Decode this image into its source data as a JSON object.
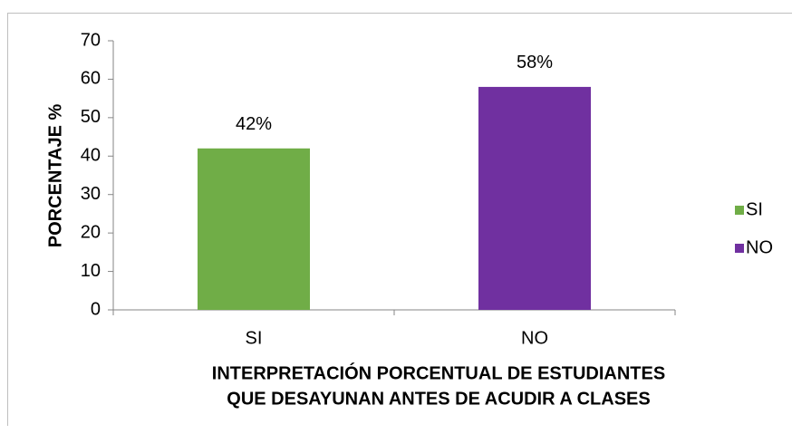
{
  "chart_data": {
    "type": "bar",
    "categories": [
      "SI",
      "NO"
    ],
    "values": [
      42,
      58
    ],
    "value_labels": [
      "42%",
      "58%"
    ],
    "colors": [
      "#70ad47",
      "#7030a0"
    ],
    "ylabel": "PORCENTAJE %",
    "xlabel": [
      "INTERPRETACIÓN PORCENTUAL DE ESTUDIANTES",
      "QUE DESAYUNAN ANTES DE ACUDIR A CLASES"
    ],
    "ylim": [
      0,
      70
    ],
    "yticks": [
      0,
      10,
      20,
      30,
      40,
      50,
      60,
      70
    ],
    "legend": "right"
  }
}
